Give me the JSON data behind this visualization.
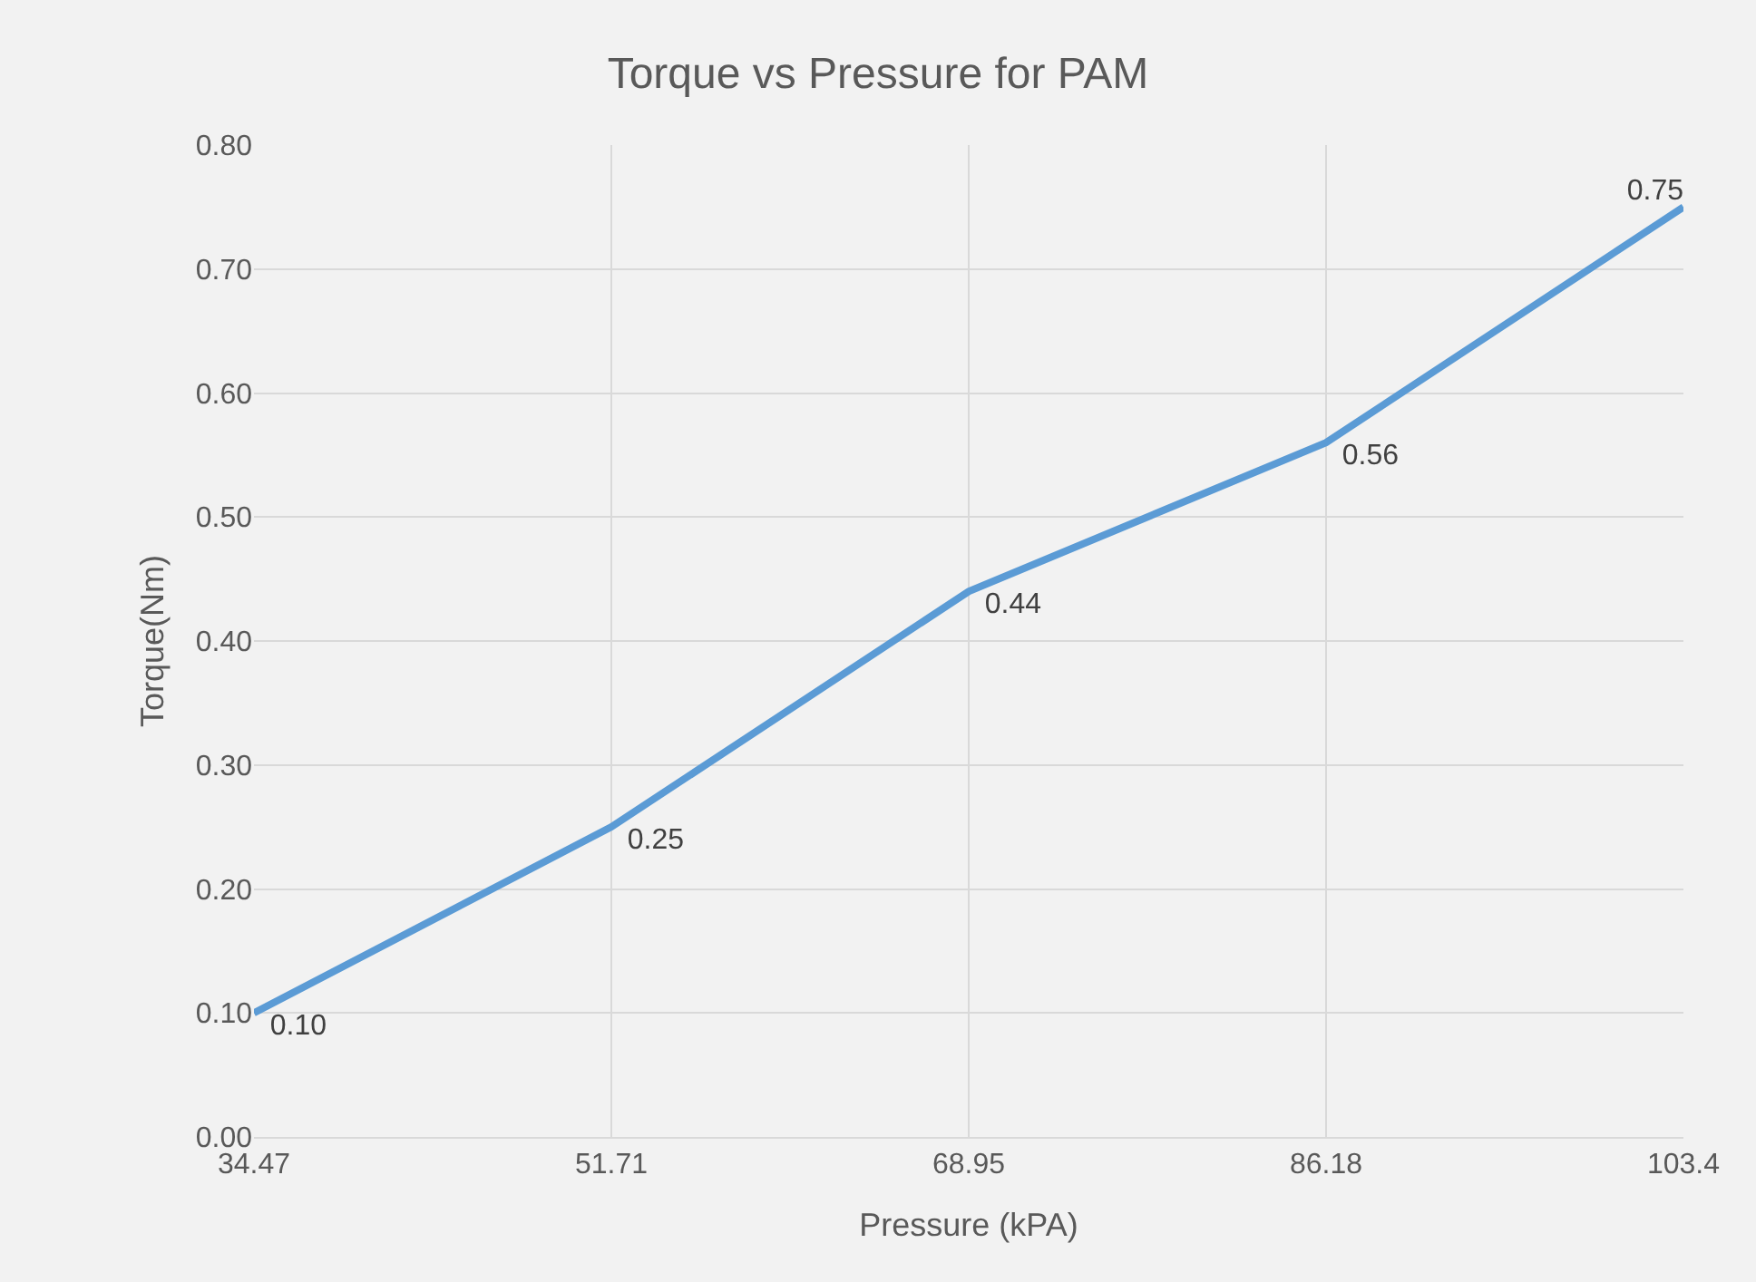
{
  "chart_data": {
    "type": "line",
    "title": "Torque vs Pressure for PAM",
    "xlabel": "Pressure (kPA)",
    "ylabel": "Torque(Nm)",
    "categories": [
      "34.47",
      "51.71",
      "68.95",
      "86.18",
      "103.4"
    ],
    "series": [
      {
        "color": "#5b9bd5",
        "values": [
          0.1,
          0.25,
          0.44,
          0.56,
          0.75
        ],
        "value_labels": [
          "0.10",
          "0.25",
          "0.44",
          "0.56",
          "0.75"
        ]
      }
    ],
    "ylim": [
      0,
      0.8
    ],
    "yticks": [
      {
        "value": 0,
        "label": "0.00"
      },
      {
        "value": 0.1,
        "label": "0.10"
      },
      {
        "value": 0.2,
        "label": "0.20"
      },
      {
        "value": 0.3,
        "label": "0.30"
      },
      {
        "value": 0.4,
        "label": "0.40"
      },
      {
        "value": 0.5,
        "label": "0.50"
      },
      {
        "value": 0.6,
        "label": "0.60"
      },
      {
        "value": 0.7,
        "label": "0.70"
      },
      {
        "value": 0.8,
        "label": "0.80"
      }
    ],
    "grid": true,
    "marker": "none",
    "line_style": "solid"
  }
}
